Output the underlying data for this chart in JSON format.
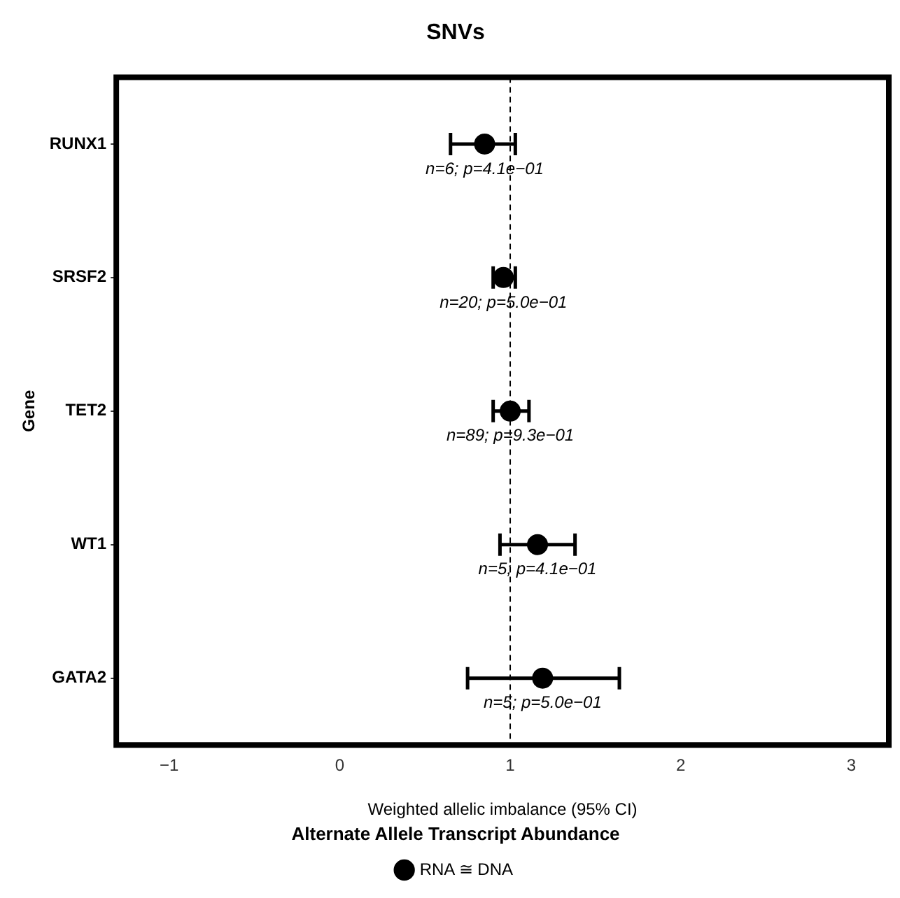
{
  "chart_data": {
    "type": "scatter",
    "orientation": "horizontal",
    "title": "SNVs",
    "xlabel": "Weighted allelic imbalance (95% CI)",
    "ylabel": "Gene",
    "legend_title": "Alternate Allele Transcript Abundance",
    "legend": "bottom",
    "marker": "circle",
    "grid": false,
    "categories": [
      "RUNX1",
      "SRSF2",
      "TET2",
      "WT1",
      "GATA2"
    ],
    "series": [
      {
        "name": "RNA ≅ DNA",
        "color": "#000000",
        "values": [
          0.85,
          0.96,
          1.0,
          1.16,
          1.19
        ],
        "errors": [
          [
            0.65,
            1.03
          ],
          [
            0.9,
            1.03
          ],
          [
            0.9,
            1.11
          ],
          [
            0.94,
            1.38
          ],
          [
            0.75,
            1.64
          ]
        ]
      }
    ],
    "xlim": [
      -1.31,
      3.22
    ],
    "xticks": [
      {
        "value": -1,
        "label": "−1"
      },
      0,
      1,
      2,
      3
    ],
    "ref_lines": [
      {
        "axis": "x",
        "value": 1,
        "line_style": "dashed",
        "color": "#000000"
      }
    ],
    "annotations": [
      {
        "text": "n=6; p=4.1e−01",
        "x": 0.85,
        "y": "RUNX1"
      },
      {
        "text": "n=20; p=5.0e−01",
        "x": 0.96,
        "y": "SRSF2"
      },
      {
        "text": "n=89; p=9.3e−01",
        "x": 1.0,
        "y": "TET2"
      },
      {
        "text": "n=5; p=4.1e−01",
        "x": 1.16,
        "y": "WT1"
      },
      {
        "text": "n=5; p=5.0e−01",
        "x": 1.19,
        "y": "GATA2"
      }
    ]
  }
}
